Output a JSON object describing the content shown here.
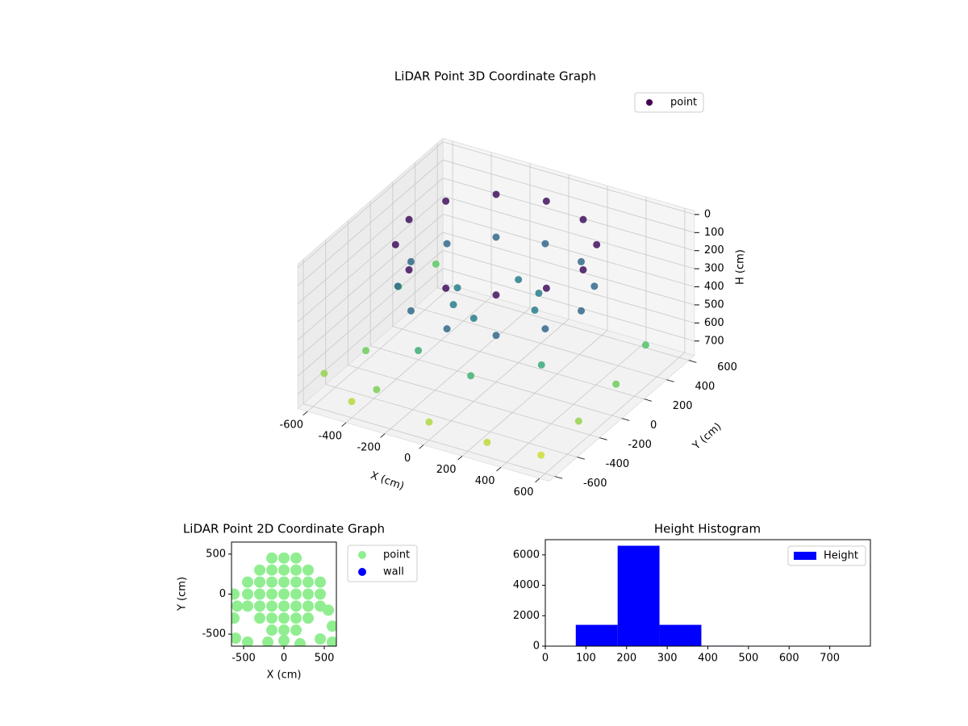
{
  "chart_data": [
    {
      "type": "scatter3d",
      "title": "LiDAR Point 3D Coordinate Graph",
      "xlabel": "X (cm)",
      "ylabel": "Y (cm)",
      "zlabel": "H (cm)",
      "xlim": [
        -650,
        650
      ],
      "ylim": [
        -650,
        650
      ],
      "zlim": [
        -20,
        780
      ],
      "zinverted": true,
      "xticks": [
        -600,
        -400,
        -200,
        0,
        200,
        400,
        600
      ],
      "yticks": [
        -600,
        -400,
        -200,
        0,
        200,
        400,
        600
      ],
      "zticks": [
        0,
        100,
        200,
        300,
        400,
        500,
        600,
        700
      ],
      "grid": true,
      "legend": "upper right",
      "colormap": [
        "#440154",
        "#3b528b",
        "#21918c",
        "#5ec962",
        "#fde725"
      ],
      "series": [
        {
          "name": "point",
          "color": "#440154",
          "x": [
            450,
            390,
            225,
            0,
            -225,
            -390,
            -450,
            -390,
            -225,
            0,
            225,
            390,
            440,
            381,
            220,
            0,
            -220,
            -381,
            -440,
            -381,
            -220,
            0,
            220,
            381,
            200,
            0,
            -200,
            0,
            140,
            -140,
            -600,
            -500,
            -300,
            0,
            300,
            550,
            600,
            620,
            600,
            -620,
            -600,
            -400,
            100,
            -200,
            350
          ],
          "y": [
            0,
            225,
            390,
            450,
            390,
            225,
            0,
            -225,
            -390,
            -450,
            -390,
            -225,
            0,
            220,
            381,
            440,
            381,
            220,
            0,
            -220,
            -381,
            -440,
            -381,
            -220,
            0,
            200,
            0,
            -200,
            140,
            -140,
            -500,
            -300,
            -550,
            -600,
            -600,
            -550,
            -300,
            0,
            300,
            200,
            500,
            -600,
            -400,
            -350,
            -200
          ],
          "z": [
            20,
            20,
            20,
            20,
            20,
            20,
            20,
            20,
            20,
            20,
            20,
            20,
            250,
            250,
            250,
            250,
            250,
            250,
            250,
            250,
            250,
            250,
            250,
            250,
            320,
            320,
            320,
            320,
            320,
            320,
            650,
            600,
            620,
            680,
            700,
            720,
            650,
            600,
            550,
            550,
            580,
            690,
            500,
            480,
            470
          ]
        }
      ]
    },
    {
      "type": "scatter",
      "title": "LiDAR Point 2D Coordinate Graph",
      "xlabel": "X (cm)",
      "ylabel": "Y (cm)",
      "xlim": [
        -650,
        650
      ],
      "ylim": [
        -650,
        650
      ],
      "xticks": [
        -500,
        0,
        500
      ],
      "yticks": [
        -500,
        0,
        500
      ],
      "legend": "outside right",
      "series": [
        {
          "name": "point",
          "color": "#90ee90",
          "x": [
            -450,
            -300,
            -150,
            0,
            150,
            300,
            450,
            -450,
            -300,
            -150,
            0,
            150,
            300,
            450,
            -450,
            -300,
            -150,
            0,
            150,
            300,
            450,
            -300,
            -150,
            0,
            150,
            300,
            -300,
            -150,
            0,
            150,
            300,
            -150,
            0,
            150,
            -150,
            0,
            150,
            -600,
            -450,
            -200,
            200,
            450,
            600,
            -620,
            550,
            -580,
            600,
            0,
            -620
          ],
          "y": [
            0,
            0,
            0,
            0,
            0,
            0,
            0,
            150,
            150,
            150,
            150,
            150,
            150,
            150,
            -150,
            -150,
            -150,
            -150,
            -150,
            -150,
            -150,
            300,
            300,
            300,
            300,
            300,
            -300,
            -300,
            -300,
            -300,
            -300,
            450,
            450,
            450,
            -450,
            -450,
            -450,
            -550,
            -600,
            -600,
            -620,
            -560,
            -400,
            -300,
            -200,
            -150,
            -600,
            -580,
            0
          ]
        },
        {
          "name": "wall",
          "color": "#0000ff",
          "x": [],
          "y": []
        }
      ]
    },
    {
      "type": "histogram",
      "title": "Height Histogram",
      "bins": [
        75,
        178,
        281,
        384,
        487,
        590,
        693,
        796
      ],
      "series": [
        {
          "name": "Height",
          "color": "#0000ff",
          "values": [
            1400,
            6600,
            1400,
            30,
            5,
            3,
            2
          ]
        }
      ],
      "xlim": [
        0,
        800
      ],
      "ylim": [
        0,
        7000
      ],
      "xticks": [
        0,
        100,
        200,
        300,
        400,
        500,
        600,
        700
      ],
      "yticks": [
        0,
        2000,
        4000,
        6000
      ],
      "legend": "upper right"
    }
  ]
}
